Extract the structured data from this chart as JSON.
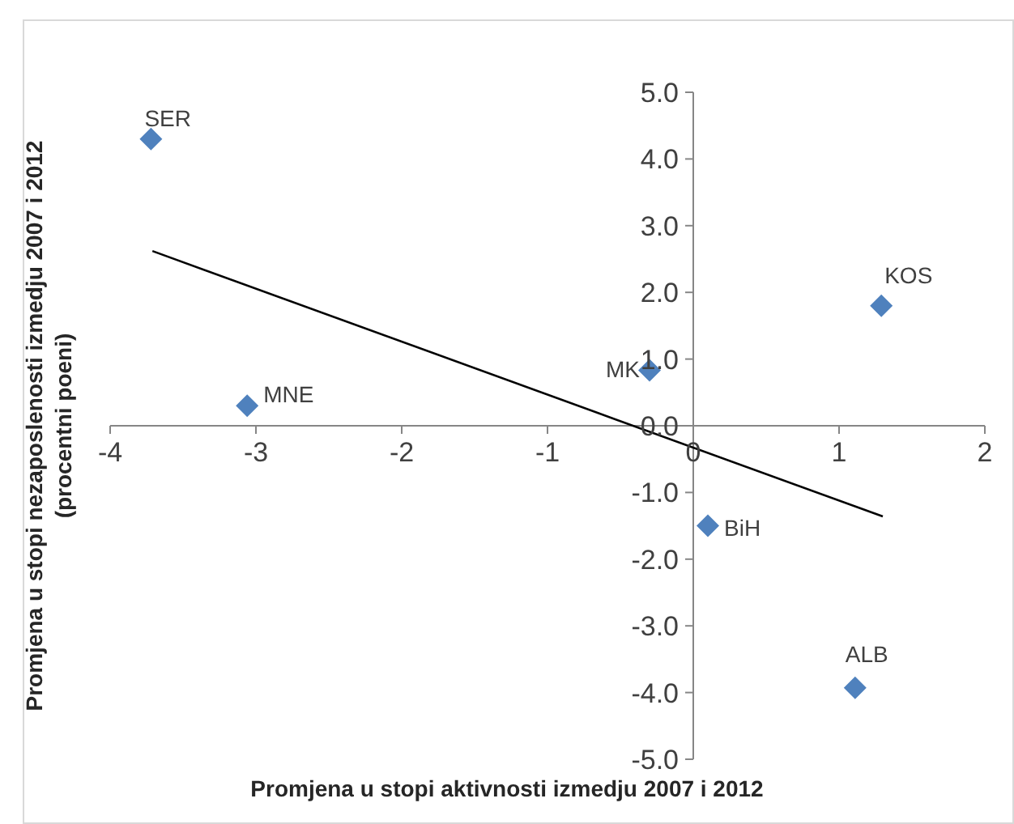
{
  "chart_data": {
    "type": "scatter",
    "xlabel": "Promjena u stopi aktivnosti izmedju 2007 i 2012",
    "ylabel": "Promjena u stopi nezaposlenosti izmedju 2007 i 2012 (procentni poeni)",
    "xlim": [
      -4,
      2
    ],
    "xticks": [
      -4,
      -3,
      -2,
      -1,
      0,
      1,
      2
    ],
    "ylim": [
      -5,
      5
    ],
    "yticks": [
      {
        "value": -5,
        "label": "-5.0"
      },
      {
        "value": -4,
        "label": "-4.0"
      },
      {
        "value": -3,
        "label": "-3.0"
      },
      {
        "value": -2,
        "label": "-2.0"
      },
      {
        "value": -1,
        "label": "-1.0"
      },
      {
        "value": 0,
        "label": "0.0"
      },
      {
        "value": 1,
        "label": "1.0"
      },
      {
        "value": 2,
        "label": "2.0"
      },
      {
        "value": 3,
        "label": "3.0"
      },
      {
        "value": 4,
        "label": "4.0"
      },
      {
        "value": 5,
        "label": "5.0"
      }
    ],
    "grid": false,
    "legend": false,
    "series": [
      {
        "type": "scatter",
        "marker": "diamond",
        "color": "#4f81bd",
        "x": [
          -3.72,
          -3.06,
          -0.3,
          1.29,
          0.1,
          1.11
        ],
        "values": [
          4.3,
          0.3,
          0.83,
          1.8,
          -1.5,
          -3.93
        ]
      },
      {
        "type": "line",
        "marker": "none",
        "color": "#000000",
        "x": [
          -3.71,
          1.3
        ],
        "values": [
          2.62,
          -1.36
        ]
      }
    ],
    "annotations": [
      {
        "text": "SER",
        "x": -3.72,
        "y": 4.3
      },
      {
        "text": "MNE",
        "x": -3.06,
        "y": 0.3
      },
      {
        "text": "MK",
        "x": -0.3,
        "y": 0.83
      },
      {
        "text": "KOS",
        "x": 1.29,
        "y": 1.8
      },
      {
        "text": "BiH",
        "x": 0.1,
        "y": -1.5
      },
      {
        "text": "ALB",
        "x": 1.11,
        "y": -3.93
      }
    ]
  }
}
